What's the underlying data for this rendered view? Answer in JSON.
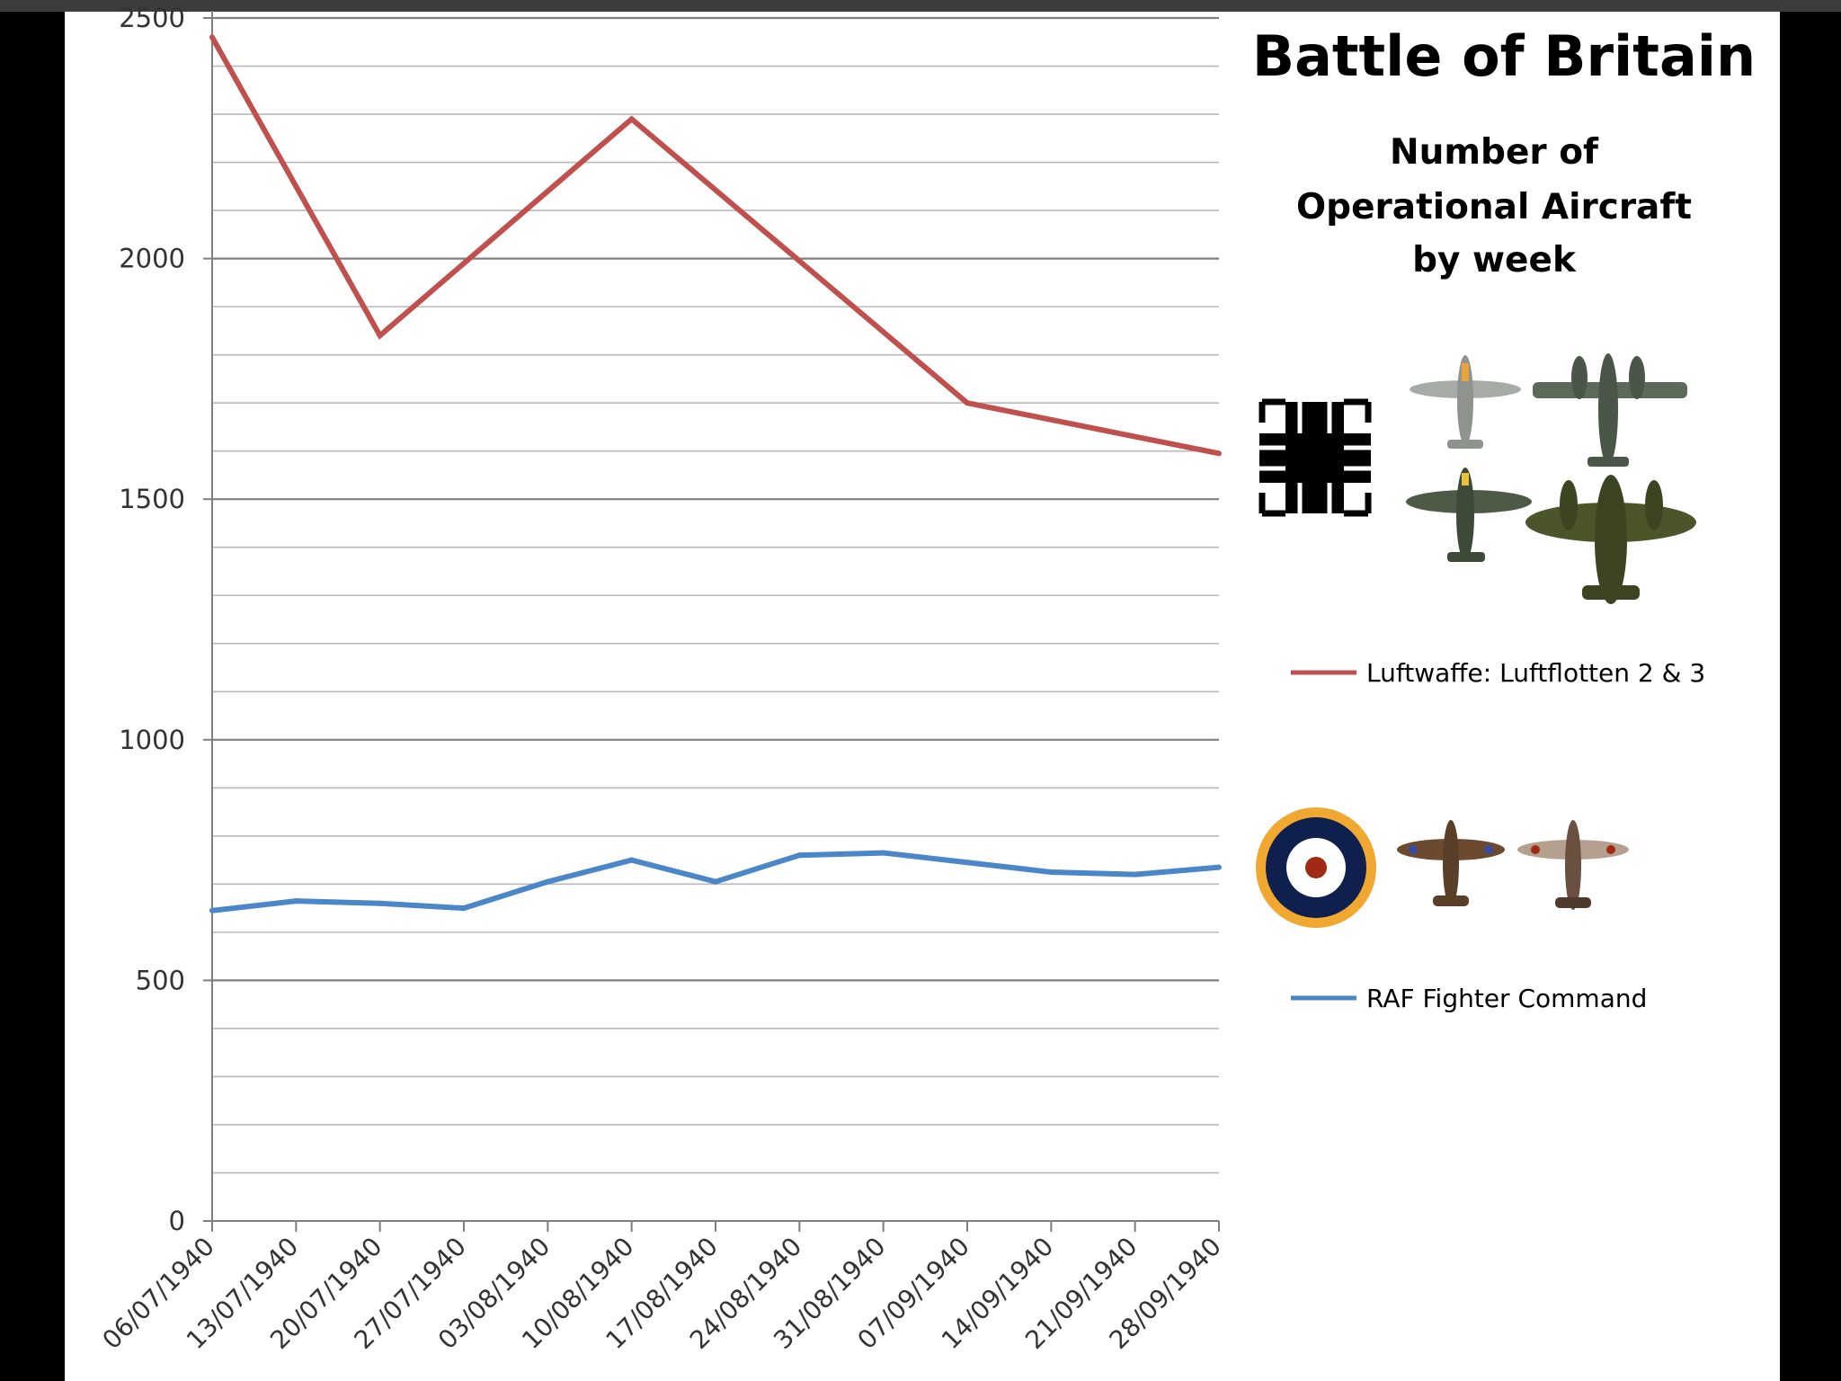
{
  "chart_data": {
    "type": "line",
    "title": "Battle of Britain",
    "subtitle": [
      "Number of",
      "Operational Aircraft",
      "by week"
    ],
    "categories": [
      "06/07/1940",
      "13/07/1940",
      "20/07/1940",
      "27/07/1940",
      "03/08/1940",
      "10/08/1940",
      "17/08/1940",
      "24/08/1940",
      "31/08/1940",
      "07/09/1940",
      "14/09/1940",
      "21/09/1940",
      "28/09/1940"
    ],
    "series": [
      {
        "name": "Luftwaffe: Luftflotten 2 & 3",
        "color": "#c0504d",
        "values": [
          2460,
          null,
          1840,
          null,
          null,
          2290,
          null,
          null,
          null,
          1700,
          null,
          null,
          1595
        ]
      },
      {
        "name": "RAF Fighter Command",
        "color": "#4a86c8",
        "values": [
          645,
          665,
          660,
          650,
          705,
          750,
          705,
          760,
          765,
          745,
          725,
          720,
          735
        ]
      }
    ],
    "ylim": [
      0,
      2500
    ],
    "yticks": [
      0,
      500,
      1000,
      1500,
      2000,
      2500
    ],
    "grid": true,
    "legend": "right",
    "icons": [
      "balkenkreuz-icon",
      "luftwaffe-aircraft-icons",
      "raf-roundel-icon",
      "raf-aircraft-icons"
    ]
  }
}
